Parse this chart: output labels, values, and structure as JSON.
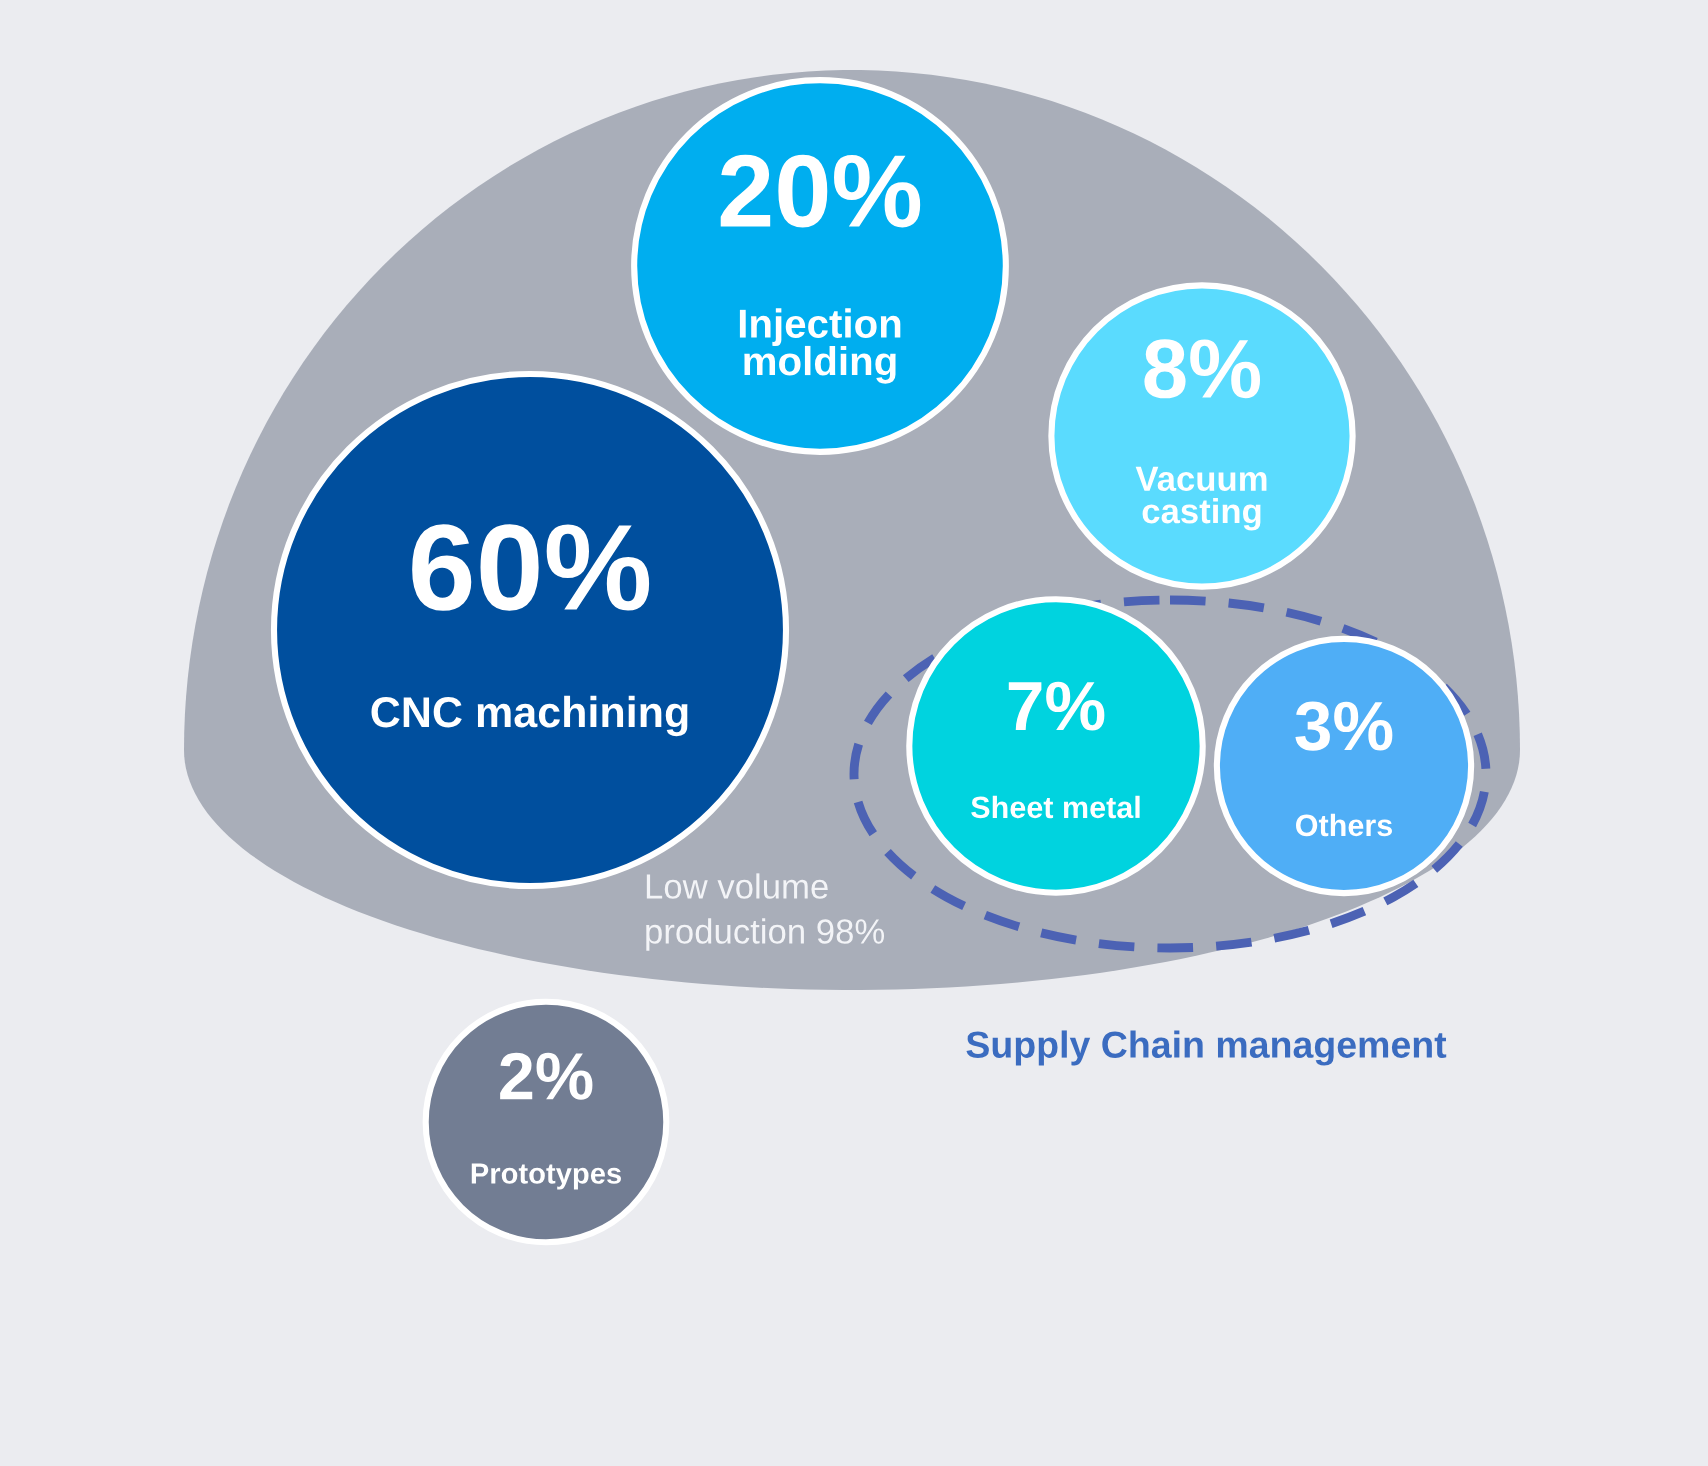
{
  "chart_data": {
    "type": "other",
    "categories": [
      "CNC machining",
      "Injection molding",
      "Vacuum casting",
      "Sheet metal",
      "Others",
      "Prototypes"
    ],
    "values": [
      60,
      20,
      8,
      7,
      3,
      2
    ],
    "value_labels": [
      "60%",
      "20%",
      "8%",
      "7%",
      "3%",
      "2%"
    ],
    "colors": [
      "#004f9e",
      "#00aeef",
      "#5adbfe",
      "#00d3df",
      "#4faef6",
      "#727d93"
    ],
    "annotations": [
      "Low volume production 98%",
      "Supply Chain management"
    ]
  }
}
